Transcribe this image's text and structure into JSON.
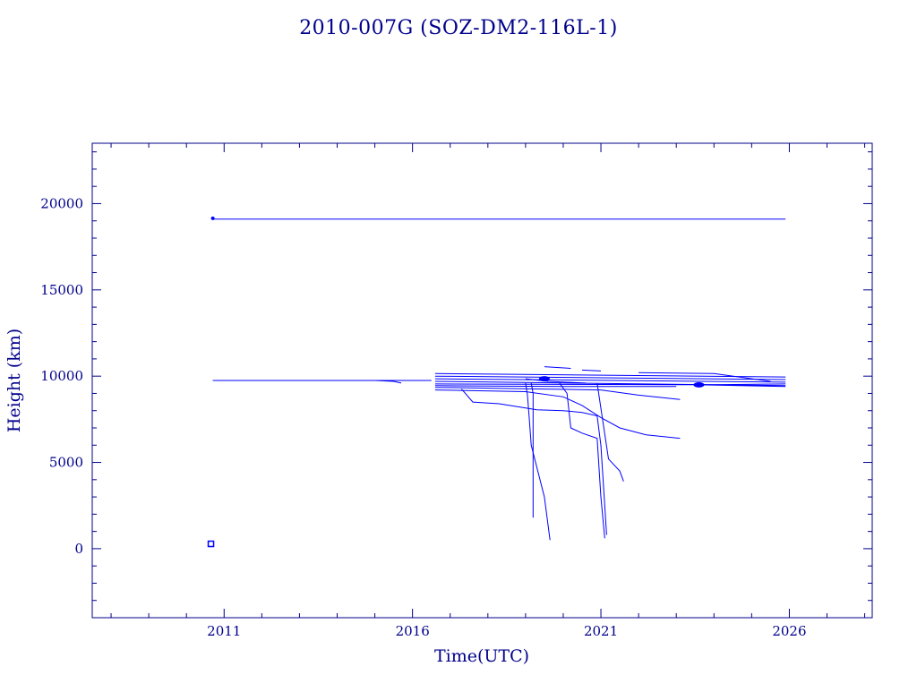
{
  "colors": {
    "axis": "#00008b",
    "series": "#0000ff",
    "background": "#ffffff"
  },
  "chart_data": {
    "type": "line",
    "title": "2010-007G (SOZ-DM2-116L-1)",
    "xlabel": "Time(UTC)",
    "ylabel": "Height (km)",
    "xlim": [
      2007.5,
      2028.2
    ],
    "ylim": [
      -4000,
      23500
    ],
    "x_ticks": [
      2011,
      2016,
      2021,
      2026
    ],
    "x_tick_labels": [
      "2011",
      "2016",
      "2021",
      "2026"
    ],
    "y_ticks": [
      0,
      5000,
      10000,
      15000,
      20000
    ],
    "y_tick_labels": [
      "0",
      "5000",
      "10000",
      "15000",
      "20000"
    ],
    "grid": false,
    "legend": "none",
    "series": [
      {
        "x": [
          2010.7,
          2025.9
        ],
        "y": [
          19100,
          19100
        ]
      },
      {
        "x": [
          2010.7,
          2016.5
        ],
        "y": [
          9750,
          9750
        ]
      },
      {
        "x": [
          2015.0,
          2015.5,
          2015.7
        ],
        "y": [
          9750,
          9700,
          9600
        ]
      },
      {
        "x": [
          2016.6,
          2025.9
        ],
        "y": [
          10150,
          9950
        ]
      },
      {
        "x": [
          2016.6,
          2025.9
        ],
        "y": [
          10000,
          9800
        ]
      },
      {
        "x": [
          2016.6,
          2025.9
        ],
        "y": [
          9850,
          9650
        ]
      },
      {
        "x": [
          2016.6,
          2025.9
        ],
        "y": [
          9700,
          9450
        ]
      },
      {
        "x": [
          2016.6,
          2024.0,
          2025.9
        ],
        "y": [
          9550,
          9500,
          9550
        ]
      },
      {
        "x": [
          2016.6,
          2020.0,
          2023.0
        ],
        "y": [
          9450,
          9400,
          9400
        ]
      },
      {
        "x": [
          2016.6,
          2019.5,
          2021.0,
          2022.0,
          2023.1
        ],
        "y": [
          9350,
          9250,
          9200,
          8900,
          8650
        ]
      },
      {
        "x": [
          2016.6,
          2019.0,
          2020.0,
          2020.5,
          2021.0,
          2021.5,
          2022.2,
          2023.1
        ],
        "y": [
          9200,
          9100,
          8800,
          8300,
          7600,
          7000,
          6600,
          6400
        ]
      },
      {
        "x": [
          2017.3,
          2017.6,
          2018.3,
          2019.3,
          2020.0,
          2020.5,
          2020.9,
          2021.0,
          2021.15
        ],
        "y": [
          9250,
          8500,
          8400,
          8050,
          8000,
          7900,
          7700,
          6000,
          800
        ]
      },
      {
        "x": [
          2019.0,
          2019.05,
          2019.1,
          2019.15,
          2019.5,
          2019.65
        ],
        "y": [
          9600,
          8900,
          7500,
          6000,
          3000,
          500
        ]
      },
      {
        "x": [
          2019.15,
          2019.2,
          2019.2
        ],
        "y": [
          9600,
          9000,
          1800
        ]
      },
      {
        "x": [
          2019.9,
          2020.1,
          2020.2,
          2020.5,
          2020.9,
          2021.0,
          2021.1
        ],
        "y": [
          9600,
          9000,
          7000,
          6700,
          6400,
          3000,
          600
        ]
      },
      {
        "x": [
          2020.9,
          2021.2,
          2021.5,
          2021.6
        ],
        "y": [
          9600,
          5200,
          4500,
          3900
        ]
      },
      {
        "x": [
          2019.5,
          2020.2
        ],
        "y": [
          10550,
          10450
        ]
      },
      {
        "x": [
          2020.5,
          2021.0
        ],
        "y": [
          10350,
          10300
        ]
      },
      {
        "x": [
          2022.0,
          2024.0,
          2025.5
        ],
        "y": [
          10200,
          10150,
          9700
        ]
      },
      {
        "x": [
          2019.0,
          2019.6,
          2020.6
        ],
        "y": [
          9850,
          9700,
          9600
        ]
      },
      {
        "x": [
          2023.5,
          2025.9
        ],
        "y": [
          9500,
          9400
        ]
      }
    ],
    "markers": [
      {
        "x": 2010.7,
        "y": 19150,
        "shape": "dot"
      },
      {
        "x": 2010.65,
        "y": 280,
        "shape": "square"
      },
      {
        "x": 2019.5,
        "y": 9850,
        "shape": "blob"
      },
      {
        "x": 2023.6,
        "y": 9500,
        "shape": "blob"
      }
    ]
  }
}
